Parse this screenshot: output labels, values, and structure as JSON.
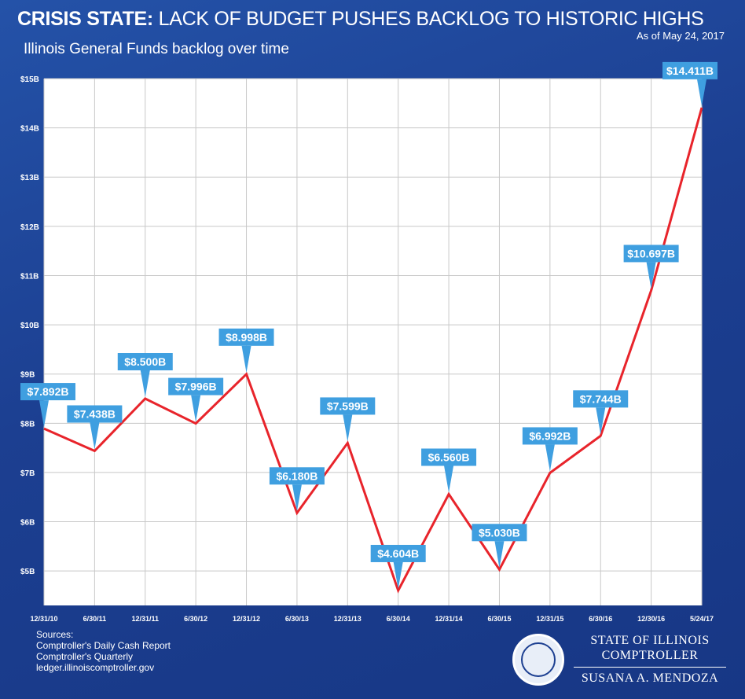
{
  "header": {
    "title_bold": "CRISIS STATE:",
    "title_rest": " LACK OF BUDGET PUSHES BACKLOG TO HISTORIC HIGHS",
    "as_of": "As of May 24, 2017",
    "subtitle": "Illinois General Funds backlog over time"
  },
  "chart_data": {
    "type": "line",
    "title": "Illinois General Funds backlog over time",
    "categories": [
      "12/31/10",
      "6/30/11",
      "12/31/11",
      "6/30/12",
      "12/31/12",
      "6/30/13",
      "12/31/13",
      "6/30/14",
      "12/31/14",
      "6/30/15",
      "12/31/15",
      "6/30/16",
      "12/30/16",
      "5/24/17"
    ],
    "series": [
      {
        "values": [
          7.892,
          7.438,
          8.5,
          7.996,
          8.998,
          6.18,
          7.599,
          4.604,
          6.56,
          5.03,
          6.992,
          7.744,
          10.697,
          14.411
        ],
        "labels": [
          "$7.892B",
          "$7.438B",
          "$8.500B",
          "$7.996B",
          "$8.998B",
          "$6.180B",
          "$7.599B",
          "$4.604B",
          "$6.560B",
          "$5.030B",
          "$6.992B",
          "$7.744B",
          "$10.697B",
          "$14.411B"
        ]
      }
    ],
    "yticks": [
      5,
      6,
      7,
      8,
      9,
      10,
      11,
      12,
      13,
      14,
      15
    ],
    "ytick_labels": [
      "$5B",
      "$6B",
      "$7B",
      "$8B",
      "$9B",
      "$10B",
      "$11B",
      "$12B",
      "$13B",
      "$14B",
      "$15B"
    ],
    "ylim": [
      4.3,
      15.0
    ],
    "grid": true,
    "colors": {
      "line": "#e8242b",
      "label_bg": "#3f9fe0",
      "plot_bg": "#ffffff",
      "grid": "#c8c8c8"
    }
  },
  "sources": {
    "heading": "Sources:",
    "lines": [
      "Comptroller's Daily Cash Report",
      "Comptroller's Quarterly",
      "ledger.illinoiscomptroller.gov"
    ]
  },
  "brand": {
    "line1": "STATE OF ILLINOIS",
    "line2": "COMPTROLLER",
    "line3": "SUSANA A. MENDOZA"
  }
}
